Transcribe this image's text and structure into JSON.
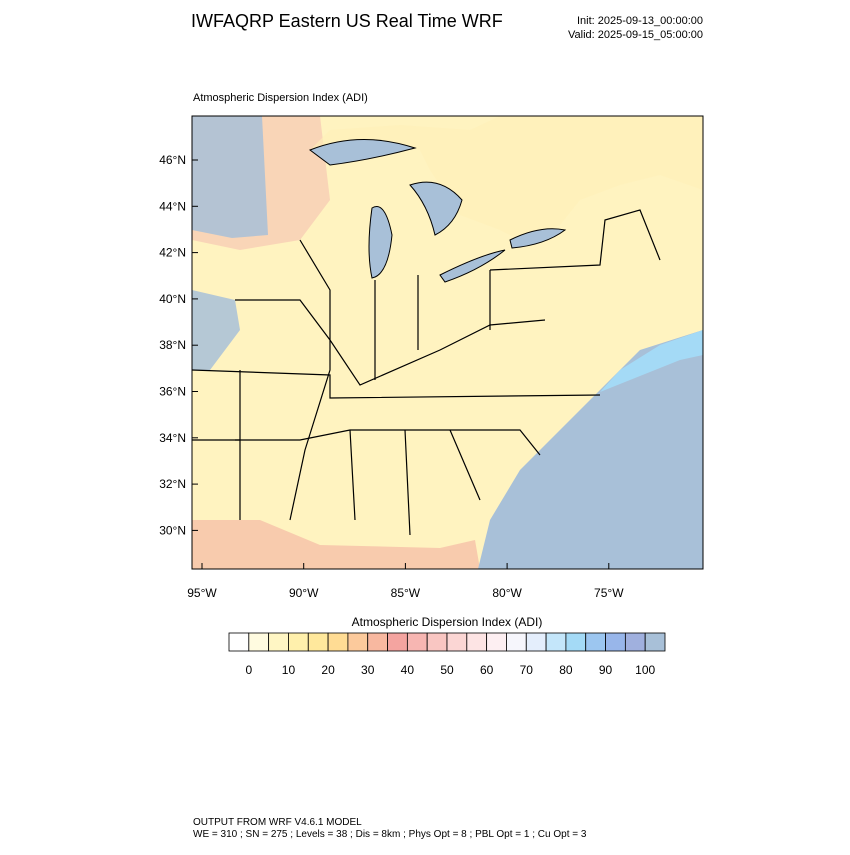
{
  "header": {
    "title": "IWFAQRP Eastern US Real Time WRF",
    "init": "Init: 2025-09-13_00:00:00",
    "valid": "Valid: 2025-09-15_05:00:00"
  },
  "map": {
    "title": "Atmospheric Dispersion Index   (ADI)",
    "lat_labels": [
      "46°N",
      "44°N",
      "42°N",
      "40°N",
      "38°N",
      "36°N",
      "34°N",
      "32°N",
      "30°N"
    ],
    "lon_labels": [
      "95°W",
      "90°W",
      "85°W",
      "80°W",
      "75°W"
    ]
  },
  "colorbar": {
    "title": "Atmospheric Dispersion Index  (ADI)",
    "ticks": [
      0,
      10,
      20,
      30,
      40,
      50,
      60,
      70,
      80,
      90,
      100
    ],
    "colors": [
      "#ffffff",
      "#fffbe0",
      "#fff6c4",
      "#fff0ac",
      "#ffe89c",
      "#ffdc94",
      "#fcca9c",
      "#f8b8a0",
      "#f4a4a0",
      "#f7b6b2",
      "#f9c6c2",
      "#fbd6d4",
      "#fde4e4",
      "#fdeff2",
      "#f6f6fc",
      "#e4eefc",
      "#c4e6fa",
      "#a4daf6",
      "#9cc6f0",
      "#98b6ea",
      "#a0b0de",
      "#a8c0d8"
    ]
  },
  "footer": {
    "line1": "OUTPUT FROM WRF V4.6.1 MODEL",
    "line2": "WE = 310 ; SN = 275 ; Levels = 38 ; Dis = 8km ; Phys Opt = 8 ; PBL Opt = 1 ; Cu Opt = 3"
  }
}
